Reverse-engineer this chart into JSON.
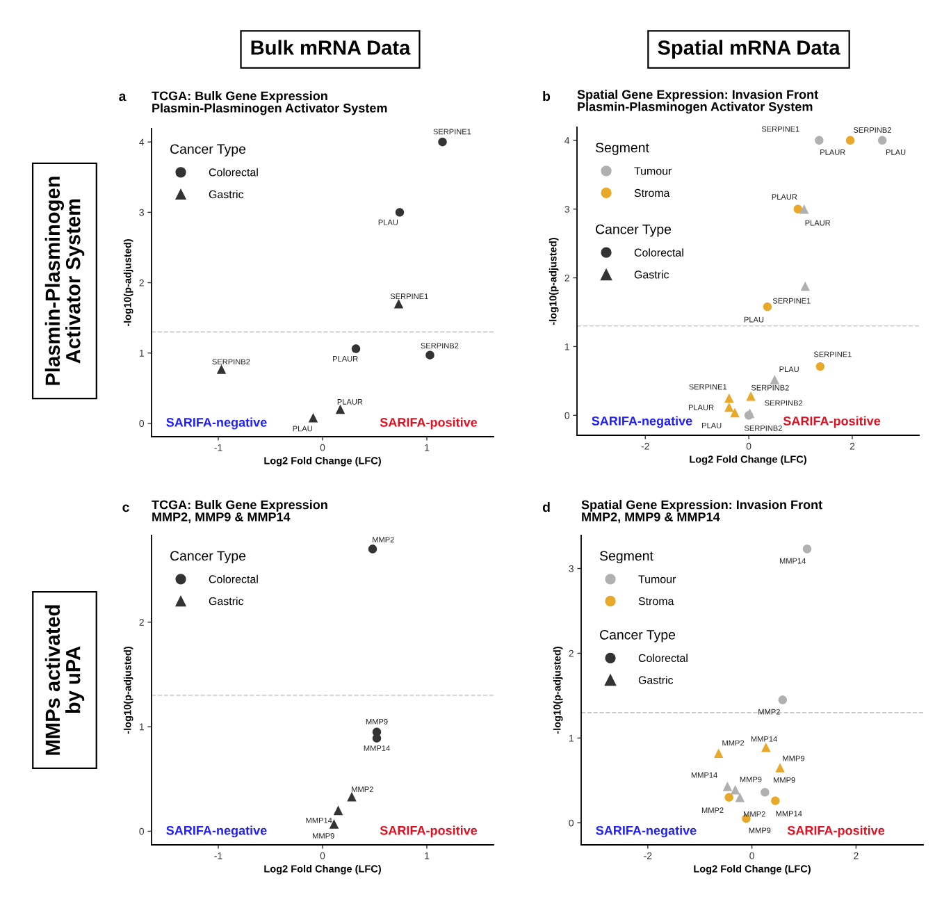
{
  "chart_data": [
    {
      "type": "scatter",
      "title": "TCGA: Bulk Gene Expression\nPlasmin-Plasminogen Activator System",
      "xlabel": "Log2 Fold Change (LFC)",
      "ylabel": "-log10(p-adjusted)",
      "legend_title": "Cancer Type",
      "legend": "top left",
      "xlim": [
        -1.64,
        1.64
      ],
      "xticks": [
        -1,
        0,
        1
      ],
      "ylim": [
        -0.19,
        4.19
      ],
      "yticks": [
        0,
        1,
        2,
        3,
        4
      ],
      "ref_lines": [
        {
          "axis": "y",
          "value": 1.3,
          "color": "#c8c8c8",
          "line_style": "dashed"
        }
      ],
      "series": [
        {
          "name": "Colorectal",
          "color": "#333333",
          "marker": "circle",
          "x": [
            1.15,
            0.74,
            0.32,
            1.03
          ],
          "values": [
            4.0,
            3.0,
            1.06,
            0.97
          ]
        },
        {
          "name": "Gastric",
          "color": "#333333",
          "marker": "triangle",
          "x": [
            0.73,
            -0.97,
            -0.09,
            0.17
          ],
          "values": [
            1.7,
            0.77,
            0.08,
            0.2
          ]
        }
      ],
      "annotations": [
        "a",
        "Bulk mRNA Data",
        "Plasmin-Plasminogen\nActivator System",
        "SARIFA-negative",
        "SARIFA-positive",
        {
          "text": "SERPINE1",
          "x": 1.15,
          "y": 4.0
        },
        {
          "text": "PLAU",
          "x": 0.74,
          "y": 3.0
        },
        {
          "text": "SERPINE1",
          "x": 0.73,
          "y": 1.7
        },
        {
          "text": "PLAUR",
          "x": 0.32,
          "y": 1.06
        },
        {
          "text": "SERPINB2",
          "x": 1.03,
          "y": 0.97
        },
        {
          "text": "SERPINB2",
          "x": -0.97,
          "y": 0.77
        },
        {
          "text": "PLAU",
          "x": -0.09,
          "y": 0.08
        },
        {
          "text": "PLAUR",
          "x": 0.17,
          "y": 0.2
        }
      ]
    },
    {
      "type": "scatter",
      "title": "Spatial Gene Expression: Invasion Front\nPlasmin-Plasminogen Activator System",
      "xlabel": "Log2 Fold Change (LFC)",
      "ylabel": "-log10(p-adjusted)",
      "legend_title": "Segment",
      "legend": "top left",
      "xlim": [
        -3.32,
        3.29
      ],
      "xticks": [
        -2,
        0,
        2
      ],
      "ylim": [
        -0.29,
        4.19
      ],
      "yticks": [
        0,
        1,
        2,
        3,
        4
      ],
      "ref_lines": [
        {
          "axis": "y",
          "value": 1.3,
          "color": "#c8c8c8",
          "line_style": "dashed"
        }
      ],
      "series": [
        {
          "name": "Tumour",
          "color": "#b0b0b0",
          "marker": "circle",
          "x": [
            1.36,
            1.38,
            2.58,
            0.0
          ],
          "values": [
            4.0,
            null,
            4.0,
            0.0
          ]
        },
        {
          "name": "Stroma",
          "color": "#e8a82a",
          "marker": "circle",
          "x": [
            1.96,
            0.95,
            0.36,
            1.38
          ],
          "values": [
            4.0,
            3.0,
            1.58,
            0.71
          ]
        },
        {
          "color": "#b0b0b0",
          "marker": "triangle",
          "x": [
            1.07,
            1.09,
            0.5,
            0.02
          ],
          "values": [
            3.0,
            1.88,
            0.52,
            0.03
          ]
        },
        {
          "color": "#e8a82a",
          "marker": "triangle",
          "x": [
            -0.38,
            -0.38,
            -0.27,
            0.04
          ],
          "values": [
            0.25,
            0.12,
            0.04,
            0.28
          ]
        }
      ],
      "annotations": [
        "b",
        "Spatial mRNA Data",
        "SARIFA-negative",
        "SARIFA-positive",
        "Cancer Type",
        "Colorectal",
        "Gastric",
        {
          "text": "SERPINE1",
          "x": 1.36,
          "y": 4.0
        },
        {
          "text": "PLAUR",
          "x": 1.36,
          "y": 4.0
        },
        {
          "text": "PLAU",
          "x": 2.58,
          "y": 4.0
        },
        {
          "text": "SERPINB2",
          "x": 1.96,
          "y": 4.0
        },
        {
          "text": "PLAUR",
          "x": 0.95,
          "y": 3.0
        },
        {
          "text": "PLAUR",
          "x": 1.07,
          "y": 3.0
        },
        {
          "text": "SERPINE1",
          "x": 1.09,
          "y": 1.88
        },
        {
          "text": "PLAU",
          "x": 0.36,
          "y": 1.58
        },
        {
          "text": "SERPINE1",
          "x": 1.38,
          "y": 0.71
        },
        {
          "text": "PLAU",
          "x": 0.5,
          "y": 0.52
        },
        {
          "text": "SERPINE1",
          "x": -0.38,
          "y": 0.25
        },
        {
          "text": "PLAUR",
          "x": -0.38,
          "y": 0.12
        },
        {
          "text": "PLAU",
          "x": -0.27,
          "y": 0.04
        },
        {
          "text": "SERPINB2",
          "x": 0.04,
          "y": 0.28
        },
        {
          "text": "SERPINB2",
          "x": 0.0,
          "y": 0.0
        },
        {
          "text": "SERPINB2",
          "x": 0.02,
          "y": 0.03
        }
      ]
    },
    {
      "type": "scatter",
      "title": "TCGA: Bulk Gene Expression\nMMP2, MMP9 & MMP14",
      "xlabel": "Log2 Fold Change (LFC)",
      "ylabel": "-log10(p-adjusted)",
      "legend_title": "Cancer Type",
      "legend": "top left",
      "xlim": [
        -1.64,
        1.64
      ],
      "xticks": [
        -1,
        0,
        1
      ],
      "ylim": [
        -0.13,
        2.83
      ],
      "yticks": [
        0,
        1,
        2
      ],
      "ref_lines": [
        {
          "axis": "y",
          "value": 1.3,
          "color": "#c8c8c8",
          "line_style": "dashed"
        }
      ],
      "series": [
        {
          "name": "Colorectal",
          "color": "#333333",
          "marker": "circle",
          "x": [
            0.48,
            0.52,
            0.52
          ],
          "values": [
            2.7,
            0.95,
            0.89
          ]
        },
        {
          "name": "Gastric",
          "color": "#333333",
          "marker": "triangle",
          "x": [
            0.28,
            0.15,
            0.11
          ],
          "values": [
            0.33,
            0.2,
            0.07
          ]
        }
      ],
      "annotations": [
        "c",
        "MMPs activated\nby uPA",
        "SARIFA-negative",
        "SARIFA-positive",
        {
          "text": "MMP2",
          "x": 0.48,
          "y": 2.7
        },
        {
          "text": "MMP9",
          "x": 0.52,
          "y": 0.95
        },
        {
          "text": "MMP14",
          "x": 0.52,
          "y": 0.89
        },
        {
          "text": "MMP2",
          "x": 0.28,
          "y": 0.33
        },
        {
          "text": "MMP14",
          "x": 0.15,
          "y": 0.2
        },
        {
          "text": "MMP9",
          "x": 0.11,
          "y": 0.07
        }
      ]
    },
    {
      "type": "scatter",
      "title": "Spatial Gene Expression: Invasion Front\nMMP2, MMP9 & MMP14",
      "xlabel": "Log2 Fold Change (LFC)",
      "ylabel": "-log10(p-adjusted)",
      "legend_title": "Segment",
      "legend": "top left",
      "xlim": [
        -3.28,
        3.29
      ],
      "xticks": [
        -2,
        0,
        2
      ],
      "ylim": [
        -0.26,
        3.39
      ],
      "yticks": [
        0,
        1,
        2,
        3
      ],
      "ref_lines": [
        {
          "axis": "y",
          "value": 1.3,
          "color": "#c8c8c8",
          "line_style": "dashed"
        }
      ],
      "series": [
        {
          "name": "Tumour",
          "color": "#b0b0b0",
          "marker": "circle",
          "x": [
            1.06,
            0.59,
            0.25
          ],
          "values": [
            3.23,
            1.45,
            0.36
          ]
        },
        {
          "name": "Stroma",
          "color": "#e8a82a",
          "marker": "circle",
          "x": [
            -0.44,
            0.45,
            -0.11
          ],
          "values": [
            0.3,
            0.26,
            0.05
          ]
        },
        {
          "color": "#e8a82a",
          "marker": "triangle",
          "x": [
            -0.64,
            0.27,
            0.54
          ],
          "values": [
            0.82,
            0.89,
            0.65
          ]
        },
        {
          "color": "#b0b0b0",
          "marker": "triangle",
          "x": [
            -0.47,
            -0.32,
            -0.23
          ],
          "values": [
            0.43,
            0.39,
            0.3
          ]
        }
      ],
      "annotations": [
        "d",
        "SARIFA-negative",
        "SARIFA-positive",
        "Cancer Type",
        "Colorectal",
        "Gastric",
        {
          "text": "MMP14",
          "x": 1.06,
          "y": 3.23
        },
        {
          "text": "MMP2",
          "x": 0.59,
          "y": 1.45
        },
        {
          "text": "MMP9",
          "x": 0.25,
          "y": 0.36
        },
        {
          "text": "MMP2",
          "x": -0.44,
          "y": 0.3
        },
        {
          "text": "MMP14",
          "x": 0.45,
          "y": 0.26
        },
        {
          "text": "MMP9",
          "x": -0.11,
          "y": 0.05
        },
        {
          "text": "MMP2",
          "x": -0.64,
          "y": 0.82
        },
        {
          "text": "MMP14",
          "x": 0.27,
          "y": 0.89
        },
        {
          "text": "MMP9",
          "x": 0.54,
          "y": 0.65
        },
        {
          "text": "MMP14",
          "x": -0.47,
          "y": 0.43
        },
        {
          "text": "MMP9",
          "x": -0.32,
          "y": 0.39
        },
        {
          "text": "MMP2",
          "x": -0.23,
          "y": 0.3
        }
      ]
    }
  ]
}
